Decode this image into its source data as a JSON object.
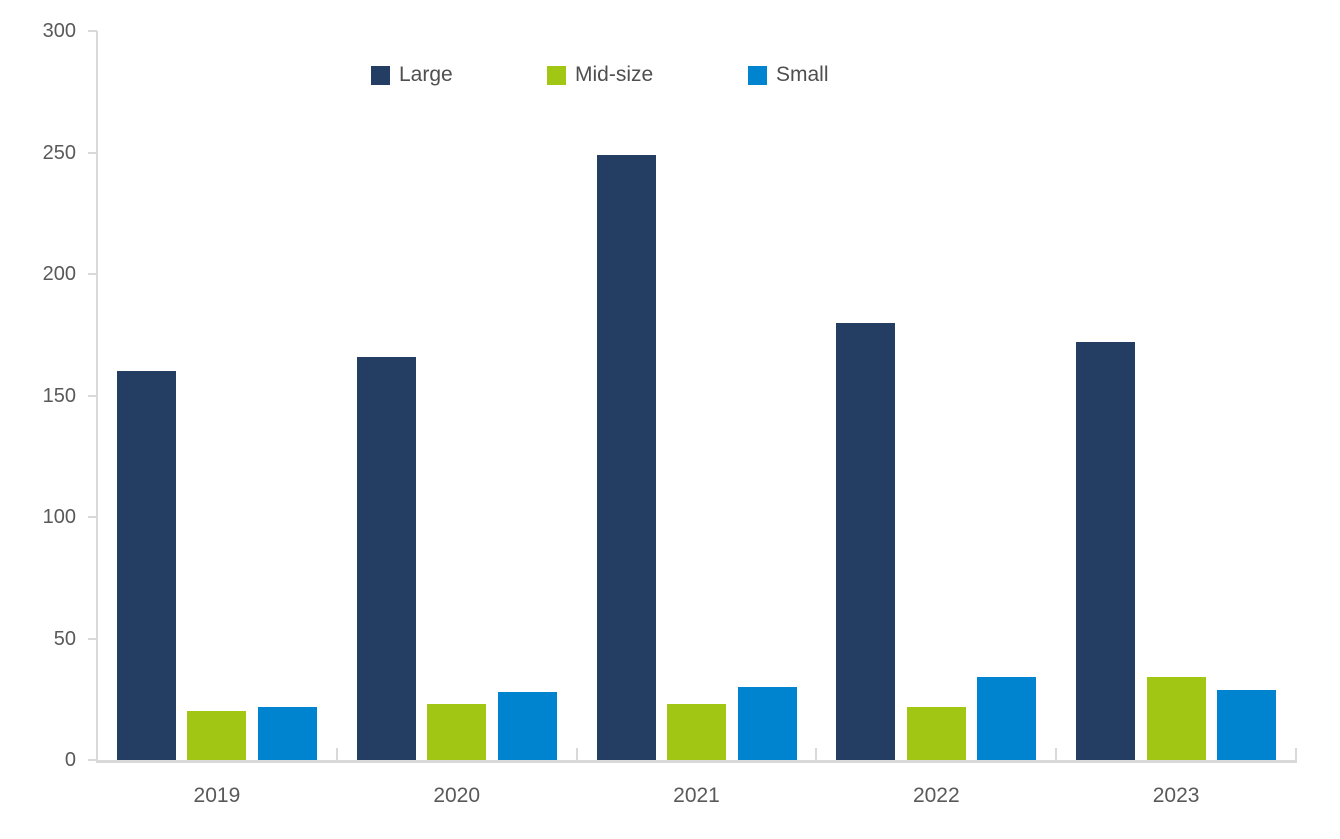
{
  "chart_data": {
    "type": "bar",
    "title": "",
    "xlabel": "",
    "ylabel": "",
    "categories": [
      "2019",
      "2020",
      "2021",
      "2022",
      "2023"
    ],
    "series": [
      {
        "name": "Large",
        "color": "#243E63",
        "values": [
          160,
          166,
          249,
          180,
          172
        ]
      },
      {
        "name": "Mid-size",
        "color": "#A2C614",
        "values": [
          20,
          23,
          23,
          22,
          34
        ]
      },
      {
        "name": "Small",
        "color": "#0084D0",
        "values": [
          22,
          28,
          30,
          34,
          29
        ]
      }
    ],
    "ylim": [
      0,
      300
    ],
    "yticks": [
      0,
      50,
      100,
      150,
      200,
      250,
      300
    ],
    "grid": false,
    "legend_position": "top",
    "axis_color": "#D9D9D9",
    "label_color": "#595959"
  }
}
